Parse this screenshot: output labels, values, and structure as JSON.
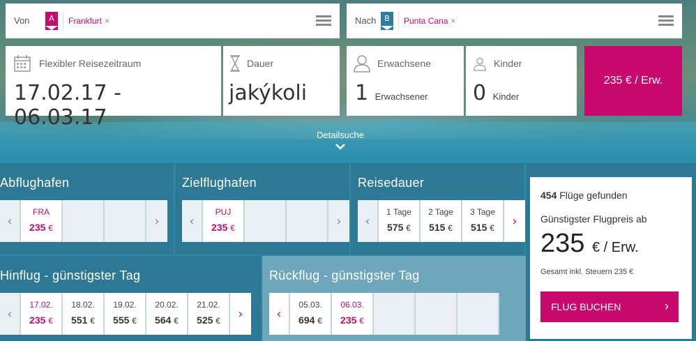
{
  "search": {
    "from": {
      "label": "Von",
      "marker": "A",
      "city": "Frankfurt",
      "remove": "×"
    },
    "to": {
      "label": "Nach",
      "marker": "B",
      "city": "Punta Cana",
      "remove": "×"
    },
    "dates": {
      "label": "Flexibler Reisezeitraum",
      "value": "17.02.17 - 06.03.17",
      "icon": "calendar-icon"
    },
    "duration": {
      "label": "Dauer",
      "value": "jakýkoli",
      "icon": "hourglass-icon"
    },
    "adults": {
      "label": "Erwachsene",
      "value": "1",
      "unit": "Erwachsener",
      "icon": "person-icon"
    },
    "children": {
      "label": "Kinder",
      "value": "0",
      "unit": "Kinder",
      "icon": "child-icon"
    },
    "price_button": "235 € / Erw.",
    "detail_link": "Detailsuche"
  },
  "filters": {
    "departure": {
      "title": "Abflughafen",
      "items": [
        {
          "code": "FRA",
          "price": "235",
          "cur": "€"
        }
      ]
    },
    "destination": {
      "title": "Zielflughafen",
      "items": [
        {
          "code": "PUJ",
          "price": "235",
          "cur": "€"
        }
      ]
    },
    "duration": {
      "title": "Reisedauer",
      "items": [
        {
          "label": "1 Tage",
          "price": "575",
          "cur": "€"
        },
        {
          "label": "2 Tage",
          "price": "515",
          "cur": "€"
        },
        {
          "label": "3 Tage",
          "price": "515",
          "cur": "€"
        }
      ]
    },
    "outbound": {
      "title": "Hinflug - günstigster Tag",
      "items": [
        {
          "date": "17.02.",
          "price": "235",
          "cur": "€"
        },
        {
          "date": "18.02.",
          "price": "551",
          "cur": "€"
        },
        {
          "date": "19.02.",
          "price": "555",
          "cur": "€"
        },
        {
          "date": "20.02.",
          "price": "564",
          "cur": "€"
        },
        {
          "date": "21.02.",
          "price": "525",
          "cur": "€"
        }
      ]
    },
    "return": {
      "title": "Rückflug - günstigster Tag",
      "items": [
        {
          "date": "05.03.",
          "price": "694",
          "cur": "€"
        },
        {
          "date": "06.03.",
          "price": "235",
          "cur": "€"
        }
      ]
    }
  },
  "summary": {
    "count": "454",
    "found_text": "Flüge gefunden",
    "cheapest_label": "Günstigster Flugpreis ab",
    "price": "235",
    "price_unit": "€ / Erw.",
    "tax_note": "Gesamt inkl. Steuern 235 €",
    "book_label": "FLUG BUCHEN"
  },
  "colors": {
    "accent": "#c80a6e",
    "panel_dark": "#2d7895",
    "panel_light": "#6ea6bc",
    "marker_b": "#2a7d9c"
  }
}
